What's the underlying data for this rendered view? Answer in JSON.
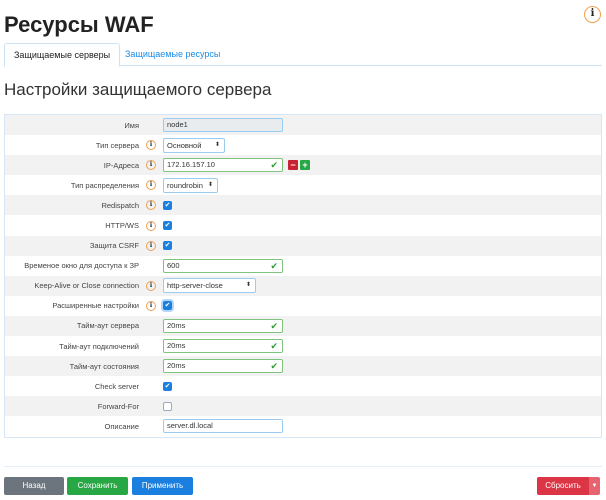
{
  "header": {
    "title": "Ресурсы WAF",
    "help_icon": "info-icon"
  },
  "tabs": [
    {
      "label": "Защищаемые серверы",
      "active": true
    },
    {
      "label": "Защищаемые ресурсы",
      "active": false
    }
  ],
  "section_title": "Настройки защищаемого сервера",
  "fields": [
    {
      "label": "Имя",
      "info": false,
      "type": "text",
      "value": "node1",
      "readonly": true,
      "width": 120
    },
    {
      "label": "Тип сервера",
      "info": true,
      "type": "select",
      "value": "Основной",
      "width": 62
    },
    {
      "label": "IP-Адреса",
      "info": true,
      "type": "text",
      "value": "172.16.157.10",
      "valid": true,
      "width": 120,
      "addremove": true
    },
    {
      "label": "Тип распределения",
      "info": true,
      "type": "select",
      "value": "roundrobin",
      "width": 55
    },
    {
      "label": "Redispatch",
      "info": true,
      "type": "checkbox",
      "checked": true
    },
    {
      "label": "HTTP/WS",
      "info": true,
      "type": "checkbox",
      "checked": true
    },
    {
      "label": "Защита CSRF",
      "info": true,
      "type": "checkbox",
      "checked": true
    },
    {
      "label": "Временое окно для доступа к ЗР",
      "info": false,
      "type": "text",
      "value": "600",
      "valid": true,
      "width": 120
    },
    {
      "label": "Keep-Alive or Close connection",
      "info": true,
      "type": "select",
      "value": "http-server-close",
      "width": 93
    },
    {
      "label": "Расширенные настройки",
      "info": true,
      "type": "checkbox",
      "checked": true,
      "focus": true
    },
    {
      "label": "Тайм-аут сервера",
      "info": false,
      "type": "text",
      "value": "20ms",
      "valid": true,
      "width": 120
    },
    {
      "label": "Тайм-аут подключений",
      "info": false,
      "type": "text",
      "value": "20ms",
      "valid": true,
      "width": 120
    },
    {
      "label": "Тайм-аут состояния",
      "info": false,
      "type": "text",
      "value": "20ms",
      "valid": true,
      "width": 120
    },
    {
      "label": "Check server",
      "info": false,
      "type": "checkbox",
      "checked": true
    },
    {
      "label": "Forward-For",
      "info": false,
      "type": "checkbox",
      "checked": false
    },
    {
      "label": "Описание",
      "info": false,
      "type": "text",
      "value": "server.dl.local",
      "width": 120
    }
  ],
  "buttons": {
    "back": "Назад",
    "save": "Сохранить",
    "apply": "Применить",
    "reset": "Сбросить"
  },
  "colors": {
    "back": "#6c757d",
    "save": "#28a745",
    "apply": "#1b7fe0",
    "reset": "#dc3545"
  }
}
